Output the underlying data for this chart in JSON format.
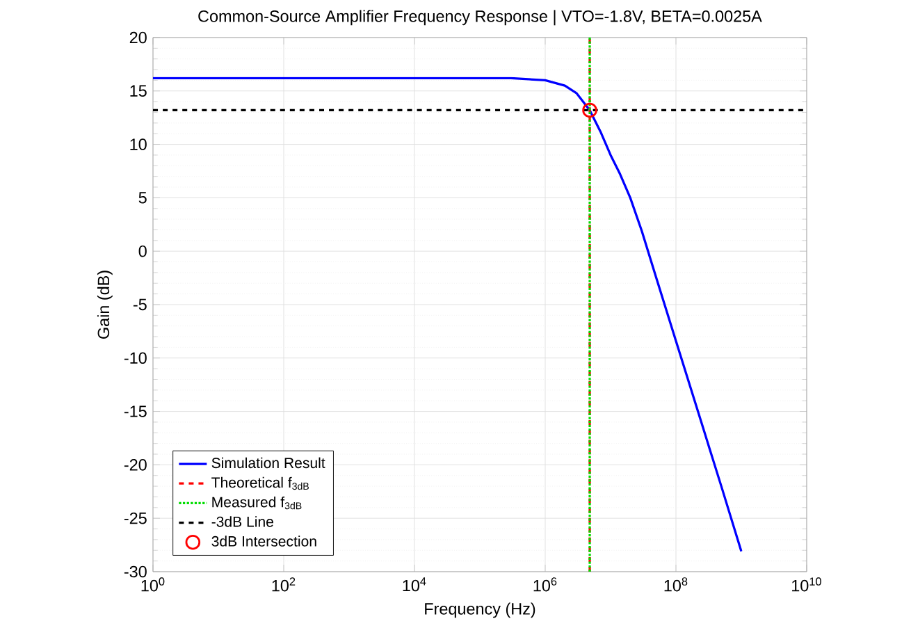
{
  "chart_data": {
    "type": "line",
    "title": "Common-Source Amplifier Frequency Response | VTO=-1.8V, BETA=0.0025A",
    "xlabel": "Frequency (Hz)",
    "ylabel": "Gain (dB)",
    "log": "x",
    "grid": true,
    "legend": "bottom left",
    "xlim": [
      1,
      10000000000
    ],
    "ylim": [
      -30,
      20
    ],
    "xticks": [
      {
        "value": 1,
        "label": "10$^{0}$"
      },
      {
        "value": 100,
        "label": "10$^{2}$"
      },
      {
        "value": 10000,
        "label": "10$^{4}$"
      },
      {
        "value": 1000000,
        "label": "10$^{6}$"
      },
      {
        "value": 100000000,
        "label": "10$^{8}$"
      },
      {
        "value": 10000000000,
        "label": "10$^{10}$"
      }
    ],
    "yticks": [
      -30,
      -25,
      -20,
      -15,
      -10,
      -5,
      0,
      5,
      10,
      15,
      20
    ],
    "series": [
      {
        "name": "Simulation Result",
        "type": "line",
        "color": "#0000ff",
        "line_style": "solid",
        "marker": "none",
        "x": [
          1,
          10,
          100,
          1000,
          10000,
          100000,
          300000,
          1000000,
          2000000,
          3000000,
          4800000,
          7000000,
          10000000,
          14000000,
          20000000,
          30000000,
          50000000,
          100000000,
          200000000,
          500000000,
          1000000000
        ],
        "values": [
          16.2,
          16.2,
          16.2,
          16.2,
          16.2,
          16.2,
          16.2,
          16.0,
          15.5,
          14.8,
          13.2,
          11.2,
          9.0,
          7.2,
          5.0,
          1.9,
          -2.5,
          -8.4,
          -14.3,
          -22.1,
          -28.1
        ]
      },
      {
        "name": "Theoretical f$_{3dB}$",
        "type": "line",
        "color": "#ff0000",
        "line_style": "dashed",
        "marker": "none",
        "x": [
          4800000,
          4800000
        ],
        "values": [
          -30,
          20
        ]
      },
      {
        "name": "Measured f$_{3dB}$",
        "type": "line",
        "color": "#00dd00",
        "line_style": "dotted",
        "marker": "none",
        "x": [
          4800000,
          4800000
        ],
        "values": [
          -30,
          20
        ]
      },
      {
        "name": "-3dB Line",
        "type": "line",
        "color": "#000000",
        "line_style": "dashed",
        "marker": "none",
        "x": [
          1,
          10000000000
        ],
        "values": [
          13.2,
          13.2
        ]
      },
      {
        "name": "3dB Intersection",
        "type": "scatter",
        "color": "#ff0000",
        "marker": "circle",
        "x": [
          4800000
        ],
        "values": [
          13.2
        ]
      }
    ]
  }
}
